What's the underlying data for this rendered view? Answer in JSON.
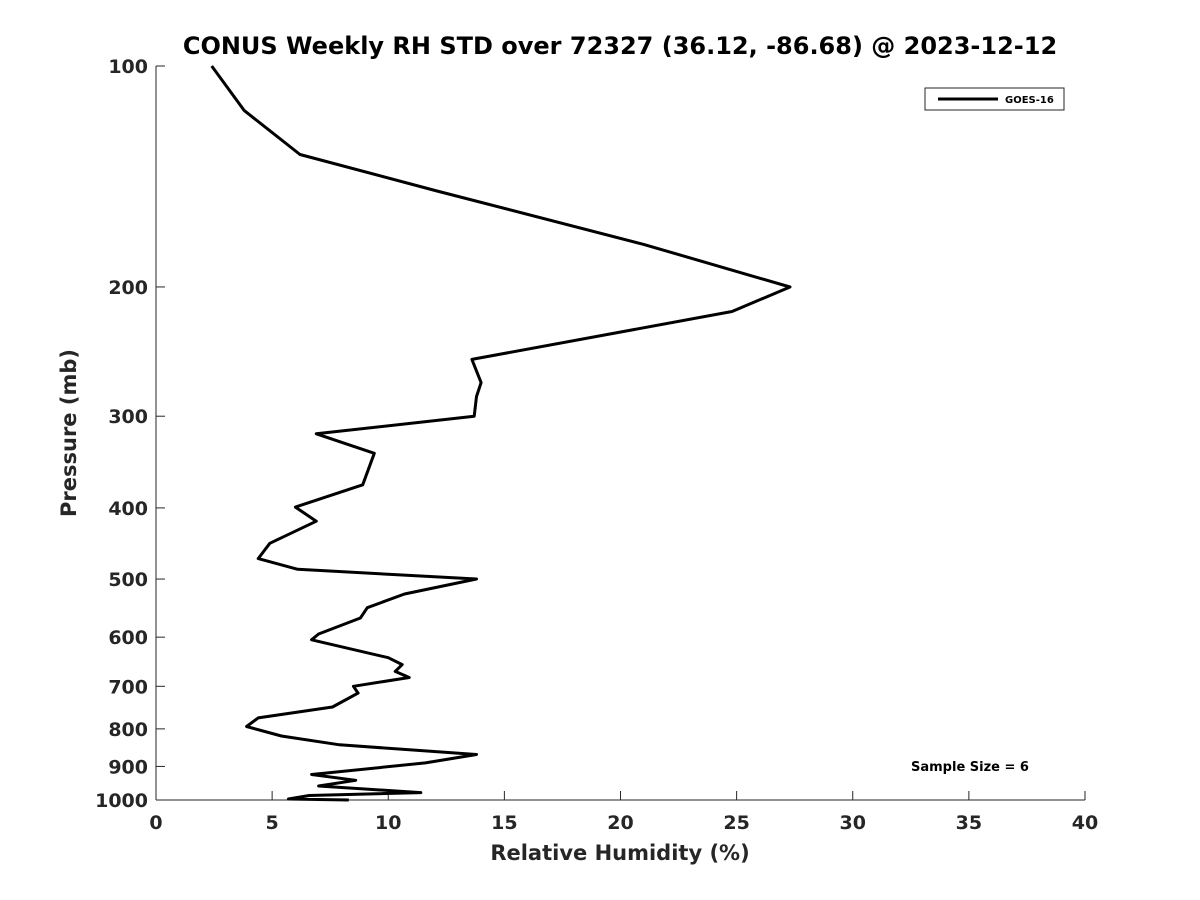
{
  "chart_data": {
    "type": "line",
    "title": "CONUS Weekly RH STD over 72327 (36.12, -86.68) @ 2023-12-12",
    "xlabel": "Relative Humidity (%)",
    "ylabel": "Pressure (mb)",
    "xlim": [
      0,
      40
    ],
    "ylim": [
      100,
      1000
    ],
    "yscale": "log",
    "y_reversed": true,
    "x_ticks": [
      "0",
      "5",
      "10",
      "15",
      "20",
      "25",
      "30",
      "35",
      "40"
    ],
    "y_ticks": [
      "100",
      "200",
      "300",
      "400",
      "500",
      "600",
      "700",
      "800",
      "900",
      "1000"
    ],
    "grid": false,
    "legend": {
      "position": "top-right",
      "entries": [
        "GOES-16"
      ]
    },
    "annotation": "Sample Size = 6",
    "series": [
      {
        "name": "GOES-16",
        "color": "#000000",
        "x": [
          2.4,
          3.8,
          6.2,
          12.1,
          21.0,
          27.3,
          24.8,
          13.6,
          14.0,
          13.8,
          13.7,
          6.9,
          9.4,
          8.9,
          6.0,
          6.9,
          4.9,
          4.4,
          6.1,
          13.8,
          10.7,
          9.1,
          8.8,
          7.0,
          6.7,
          10.0,
          10.6,
          10.3,
          10.9,
          8.5,
          8.7,
          7.6,
          4.4,
          3.9,
          5.4,
          7.9,
          13.8,
          11.6,
          6.7,
          8.6,
          7.0,
          11.4,
          6.6,
          5.7,
          8.3
        ],
        "y": [
          100,
          115,
          132,
          148,
          175,
          200,
          216,
          251,
          270,
          282,
          300,
          317,
          337,
          372,
          399,
          417,
          447,
          469,
          485,
          500,
          524,
          547,
          565,
          594,
          605,
          640,
          654,
          668,
          681,
          700,
          715,
          747,
          773,
          794,
          818,
          841,
          867,
          890,
          923,
          940,
          957,
          977,
          986,
          997,
          1000
        ]
      }
    ]
  }
}
